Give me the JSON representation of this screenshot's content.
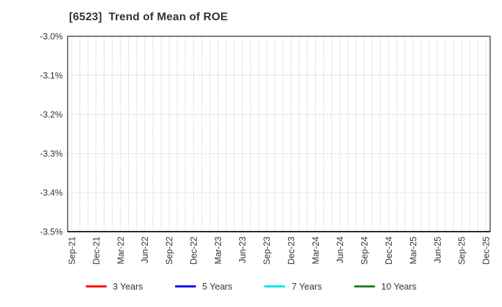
{
  "title": "[6523]  Trend of Mean of ROE",
  "chart_data": {
    "type": "line",
    "title": "[6523]  Trend of Mean of ROE",
    "x_tick_labels": [
      "Sep-21",
      "Dec-21",
      "Mar-22",
      "Jun-22",
      "Sep-22",
      "Dec-22",
      "Mar-23",
      "Jun-23",
      "Sep-23",
      "Dec-23",
      "Mar-24",
      "Jun-24",
      "Sep-24",
      "Dec-24",
      "Mar-25",
      "Jun-25",
      "Sep-25",
      "Dec-25"
    ],
    "months_per_tick": 3,
    "y_tick_labels": [
      "-3.0%",
      "-3.1%",
      "-3.2%",
      "-3.3%",
      "-3.4%",
      "-3.5%"
    ],
    "ylim": [
      -3.5,
      -3.0
    ],
    "y_unit": "%",
    "grid": "dotted",
    "legend_position": "bottom",
    "series": [
      {
        "name": "3 Years",
        "color": "#ff0000",
        "values": []
      },
      {
        "name": "5 Years",
        "color": "#0000ee",
        "values": []
      },
      {
        "name": "7 Years",
        "color": "#00e5ee",
        "values": []
      },
      {
        "name": "10 Years",
        "color": "#1e8022",
        "values": []
      }
    ]
  },
  "style": {
    "grid_color": "#b3b3b3",
    "axis_color": "#262626",
    "tick_label_color": "#333333"
  }
}
